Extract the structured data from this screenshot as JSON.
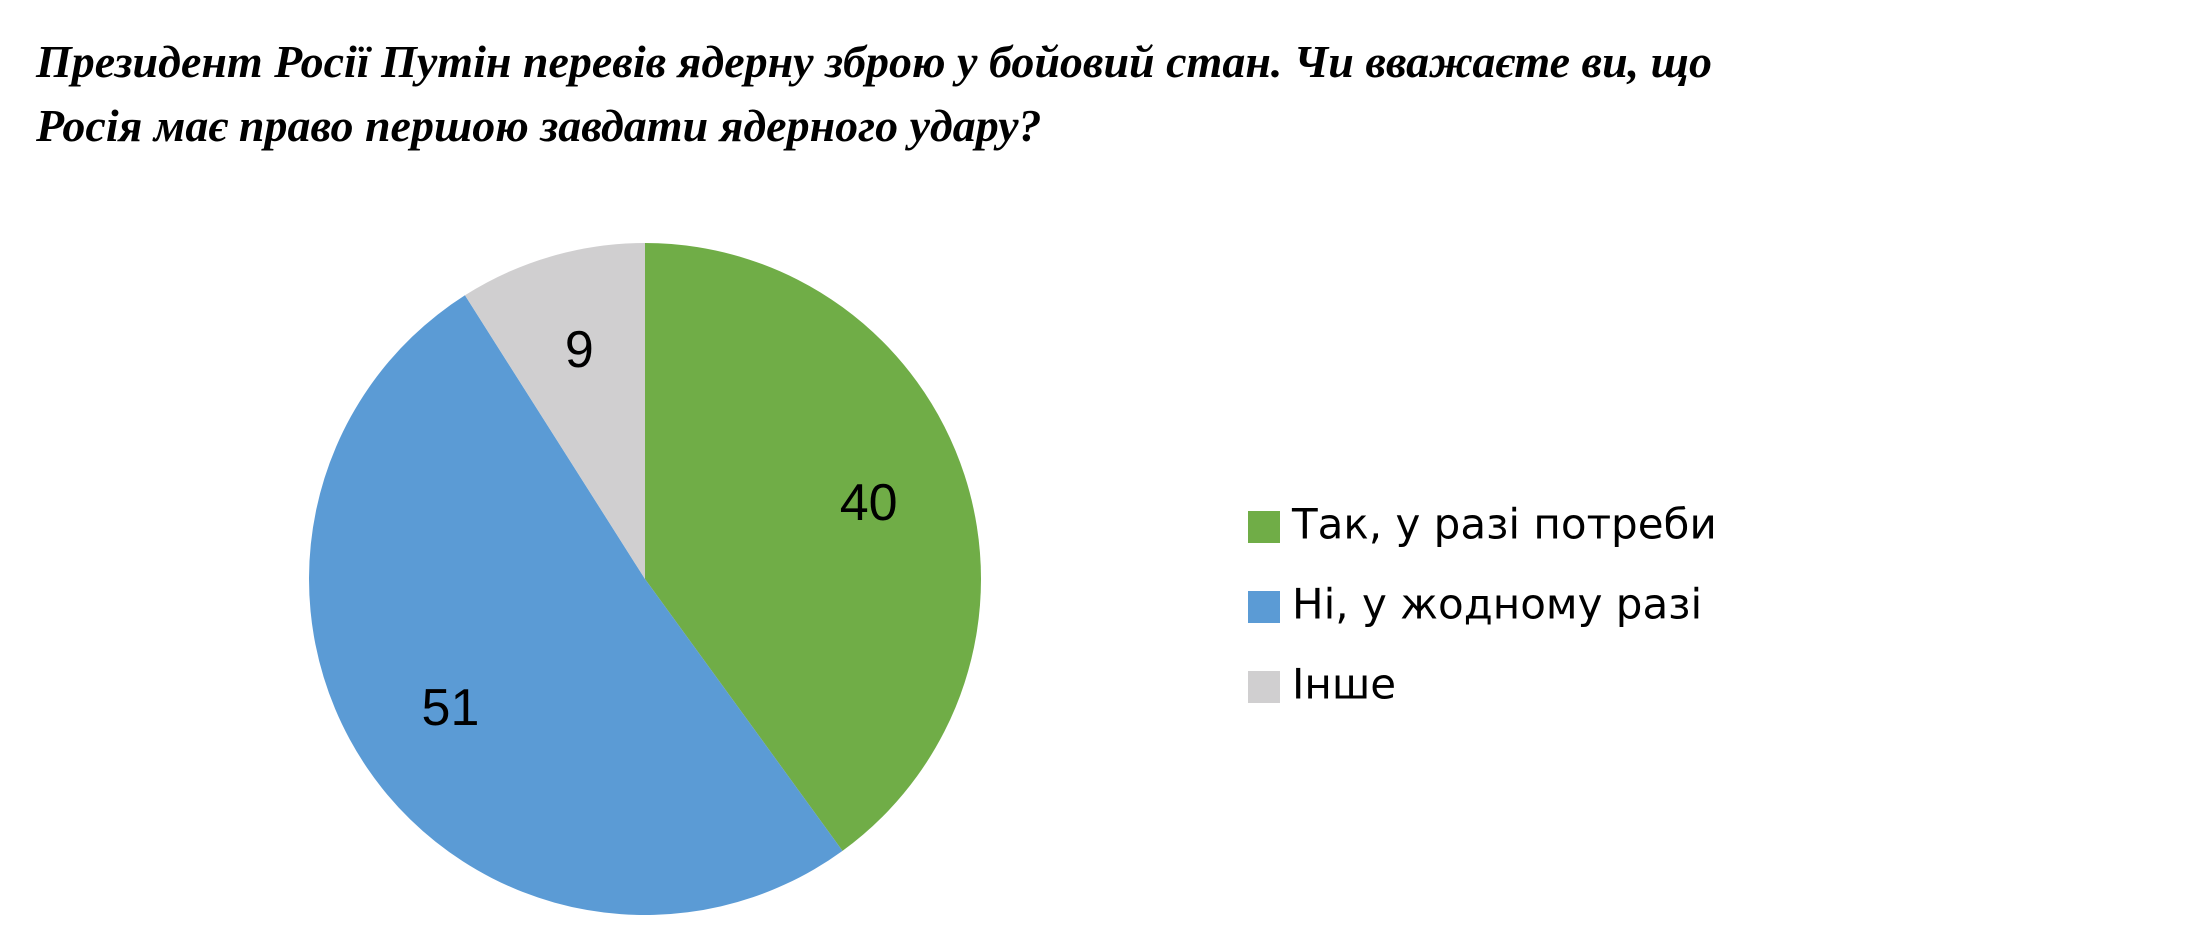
{
  "chart_data": {
    "type": "pie",
    "title": [
      "Президент Росії Путін перевів ядерну зброю у бойовий стан. Чи вважаєте ви, що",
      "Росія має право першою завдати ядерного удару?"
    ],
    "categories": [
      "Так, у разі потреби",
      "Ні, у жодному разі",
      "Інше"
    ],
    "values": [
      40,
      51,
      9
    ],
    "colors": [
      "#70ad47",
      "#5b9bd5",
      "#d0cfd0"
    ],
    "legend": "right"
  }
}
